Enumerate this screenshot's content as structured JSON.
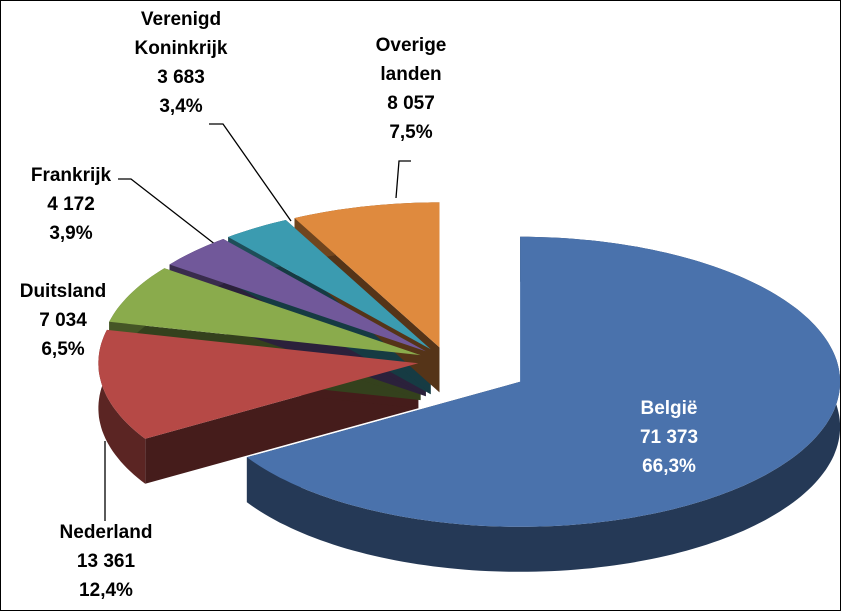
{
  "chart_data": {
    "type": "pie3d",
    "categories": [
      "België",
      "Nederland",
      "Duitsland",
      "Frankrijk",
      "Verenigd Koninkrijk",
      "Overige landen"
    ],
    "values": [
      71373,
      13361,
      7034,
      4172,
      3683,
      8057
    ],
    "value_labels": [
      "71 373",
      "13 361",
      "7 034",
      "4 172",
      "3 683",
      "8 057"
    ],
    "percentages": [
      66.3,
      12.4,
      6.5,
      3.9,
      3.4,
      7.5
    ],
    "percent_labels": [
      "66,3%",
      "12,4%",
      "6,5%",
      "3,9%",
      "3,4%",
      "7,5%"
    ],
    "colors": [
      "#4a72ac",
      "#b64946",
      "#8aab4c",
      "#71589a",
      "#3b9bb0",
      "#df8a3e"
    ]
  }
}
